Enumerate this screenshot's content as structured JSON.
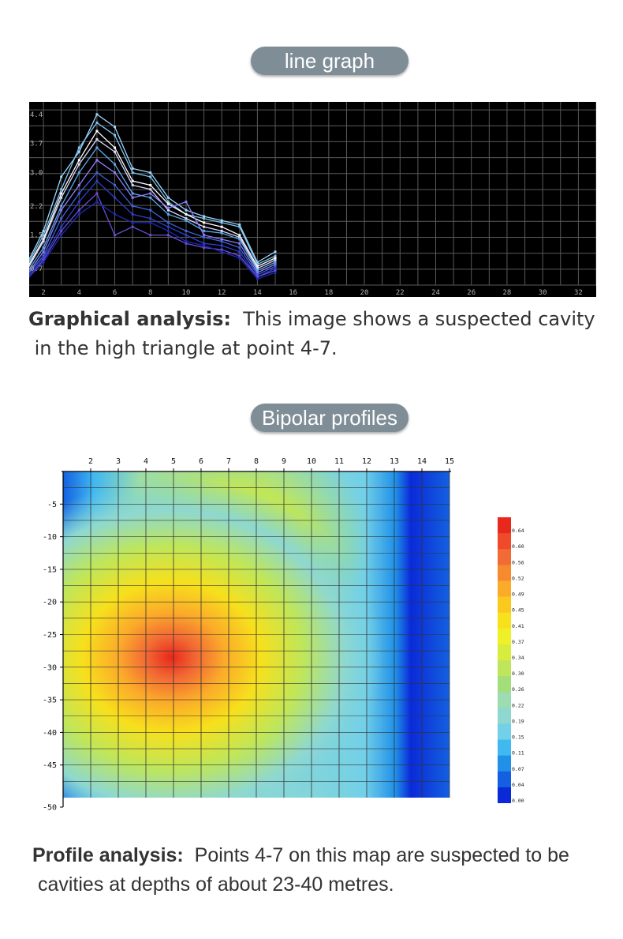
{
  "section1": {
    "pill_label": "line graph",
    "analysis_title": "Graphical analysis:",
    "analysis_text": "This image shows a suspected cavity",
    "analysis_text2": "in the high triangle at point 4-7."
  },
  "section2": {
    "pill_label": "Bipolar profiles",
    "analysis_title": "Profile analysis:",
    "analysis_text": "Points 4-7 on this map are suspected to be",
    "analysis_text2": "cavities at depths of about 23-40 metres."
  },
  "chart_data": [
    {
      "type": "line",
      "title": "",
      "x_ticks": [
        "2",
        "4",
        "6",
        "8",
        "10",
        "12",
        "14",
        "16",
        "18",
        "20",
        "22",
        "24",
        "26",
        "28",
        "30",
        "32"
      ],
      "y_ticks": [
        "0.7",
        "1.5",
        "2.2",
        "3.0",
        "3.7",
        "4.4"
      ],
      "xlim": [
        1.2,
        33
      ],
      "ylim": [
        0.3,
        4.7
      ],
      "grid": true,
      "background": "#000000",
      "x": [
        1,
        2,
        3,
        4,
        5,
        6,
        7,
        8,
        9,
        10,
        11,
        12,
        13,
        14,
        15
      ],
      "series": [
        {
          "color": "#9fd8ff",
          "values": [
            0.75,
            1.6,
            2.9,
            3.5,
            4.4,
            4.1,
            3.1,
            3.0,
            2.4,
            2.1,
            1.95,
            1.85,
            1.75,
            0.85,
            1.1
          ]
        },
        {
          "color": "#7fc4f0",
          "values": [
            0.7,
            1.5,
            2.6,
            3.6,
            4.2,
            3.9,
            3.0,
            2.9,
            2.3,
            2.0,
            1.9,
            1.8,
            1.7,
            0.8,
            1.0
          ]
        },
        {
          "color": "#ffffff",
          "values": [
            0.65,
            1.4,
            2.5,
            3.3,
            4.0,
            3.6,
            2.8,
            2.7,
            2.25,
            2.0,
            1.8,
            1.7,
            1.5,
            0.75,
            0.95
          ]
        },
        {
          "color": "#d8d8ff",
          "values": [
            0.6,
            1.35,
            2.4,
            3.2,
            3.8,
            3.5,
            2.7,
            2.6,
            2.1,
            1.9,
            1.7,
            1.6,
            1.45,
            0.7,
            0.9
          ]
        },
        {
          "color": "#5aa8e8",
          "values": [
            0.55,
            1.2,
            2.2,
            3.0,
            3.6,
            3.2,
            2.5,
            2.4,
            2.0,
            1.85,
            1.6,
            1.55,
            1.4,
            0.65,
            0.85
          ]
        },
        {
          "color": "#8f7dff",
          "values": [
            0.5,
            1.1,
            2.1,
            2.7,
            3.3,
            3.0,
            2.4,
            2.5,
            2.15,
            2.3,
            1.5,
            1.4,
            1.3,
            0.6,
            0.8
          ]
        },
        {
          "color": "#3d63e0",
          "values": [
            0.5,
            1.0,
            1.9,
            2.5,
            3.0,
            2.7,
            2.2,
            2.1,
            1.8,
            1.6,
            1.45,
            1.35,
            1.2,
            0.55,
            0.75
          ]
        },
        {
          "color": "#2b3fd0",
          "values": [
            0.45,
            0.95,
            1.7,
            2.3,
            2.8,
            2.4,
            2.0,
            1.9,
            1.7,
            1.5,
            1.3,
            1.25,
            1.1,
            0.5,
            0.7
          ]
        },
        {
          "color": "#6a4cd8",
          "values": [
            0.4,
            0.9,
            1.6,
            2.1,
            2.5,
            1.5,
            1.7,
            1.5,
            1.5,
            1.3,
            1.2,
            1.15,
            1.0,
            0.5,
            0.65
          ]
        },
        {
          "color": "#1e2ab8",
          "values": [
            0.4,
            0.85,
            1.5,
            2.0,
            2.3,
            2.0,
            1.8,
            1.8,
            1.6,
            1.35,
            1.25,
            1.1,
            0.95,
            0.45,
            0.6
          ]
        }
      ]
    },
    {
      "type": "heatmap",
      "title": "",
      "x_ticks": [
        "2",
        "3",
        "4",
        "5",
        "6",
        "7",
        "8",
        "9",
        "10",
        "11",
        "12",
        "13",
        "14",
        "15"
      ],
      "y_ticks": [
        "-5",
        "-10",
        "-15",
        "-20",
        "-25",
        "-30",
        "-35",
        "-40",
        "-45",
        "-50"
      ],
      "xlim": [
        1,
        15
      ],
      "ylim": [
        -50,
        0
      ],
      "grid": true,
      "legend_placement": "right",
      "colorbar": {
        "labels": [
          "0.64",
          "0.60",
          "0.56",
          "0.52",
          "0.49",
          "0.45",
          "0.41",
          "0.37",
          "0.34",
          "0.30",
          "0.26",
          "0.22",
          "0.19",
          "0.15",
          "0.11",
          "0.07",
          "0.04",
          "0.00"
        ],
        "colors": [
          "#e8281c",
          "#ef4a2a",
          "#f26a34",
          "#f78a2e",
          "#fbaa2a",
          "#fbc81e",
          "#f7e01c",
          "#eef028",
          "#d8ec3e",
          "#bfe65a",
          "#a4de7a",
          "#9cdcb0",
          "#8ed8d0",
          "#72d0e8",
          "#40b8f0",
          "#2090e8",
          "#1460e0",
          "#0a2ad8"
        ]
      }
    }
  ]
}
